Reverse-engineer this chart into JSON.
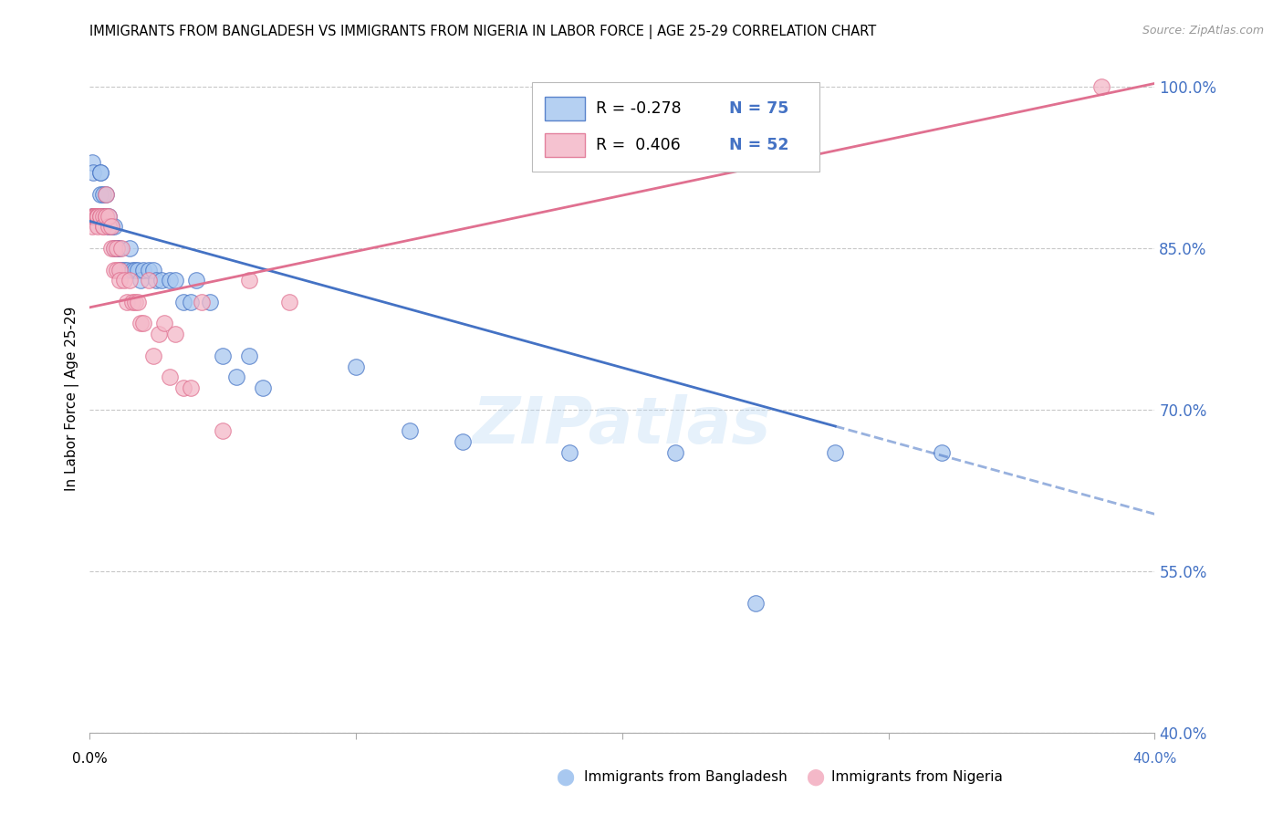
{
  "title": "IMMIGRANTS FROM BANGLADESH VS IMMIGRANTS FROM NIGERIA IN LABOR FORCE | AGE 25-29 CORRELATION CHART",
  "source": "Source: ZipAtlas.com",
  "ylabel": "In Labor Force | Age 25-29",
  "legend_r_bangladesh": "R = -0.278",
  "legend_n_bangladesh": "N = 75",
  "legend_r_nigeria": "R =  0.406",
  "legend_n_nigeria": "N = 52",
  "color_bangladesh": "#a8c8f0",
  "color_nigeria": "#f4b8c8",
  "color_bangladesh_line": "#4472c4",
  "color_nigeria_line": "#e07090",
  "color_axis_right": "#4472c4",
  "color_grid": "#c8c8c8",
  "watermark": "ZIPatlas",
  "xmin": 0.0,
  "xmax": 0.4,
  "ymin": 0.4,
  "ymax": 1.02,
  "ytick_vals": [
    1.0,
    0.85,
    0.7,
    0.55,
    0.4
  ],
  "ytick_labels": [
    "100.0%",
    "85.0%",
    "70.0%",
    "55.0%",
    "40.0%"
  ],
  "bangladesh_x": [
    0.0008,
    0.001,
    0.0012,
    0.0015,
    0.0015,
    0.002,
    0.002,
    0.002,
    0.002,
    0.0025,
    0.003,
    0.003,
    0.003,
    0.003,
    0.003,
    0.003,
    0.0035,
    0.004,
    0.004,
    0.004,
    0.0045,
    0.005,
    0.005,
    0.005,
    0.005,
    0.005,
    0.005,
    0.006,
    0.006,
    0.006,
    0.006,
    0.007,
    0.007,
    0.007,
    0.008,
    0.008,
    0.008,
    0.009,
    0.009,
    0.01,
    0.01,
    0.01,
    0.011,
    0.011,
    0.012,
    0.013,
    0.014,
    0.015,
    0.016,
    0.017,
    0.018,
    0.019,
    0.02,
    0.022,
    0.024,
    0.025,
    0.027,
    0.03,
    0.032,
    0.035,
    0.038,
    0.04,
    0.045,
    0.05,
    0.055,
    0.06,
    0.065,
    0.1,
    0.12,
    0.14,
    0.18,
    0.22,
    0.25,
    0.28,
    0.32
  ],
  "bangladesh_y": [
    0.88,
    0.93,
    0.92,
    0.88,
    0.88,
    0.88,
    0.88,
    0.88,
    0.88,
    0.88,
    0.88,
    0.88,
    0.88,
    0.88,
    0.88,
    0.88,
    0.88,
    0.9,
    0.92,
    0.92,
    0.88,
    0.9,
    0.88,
    0.88,
    0.88,
    0.88,
    0.88,
    0.9,
    0.88,
    0.88,
    0.88,
    0.87,
    0.88,
    0.87,
    0.87,
    0.87,
    0.87,
    0.87,
    0.85,
    0.85,
    0.85,
    0.85,
    0.85,
    0.83,
    0.83,
    0.83,
    0.83,
    0.85,
    0.83,
    0.83,
    0.83,
    0.82,
    0.83,
    0.83,
    0.83,
    0.82,
    0.82,
    0.82,
    0.82,
    0.8,
    0.8,
    0.82,
    0.8,
    0.75,
    0.73,
    0.75,
    0.72,
    0.74,
    0.68,
    0.67,
    0.66,
    0.66,
    0.52,
    0.66,
    0.66
  ],
  "nigeria_x": [
    0.0008,
    0.001,
    0.0012,
    0.0015,
    0.002,
    0.002,
    0.002,
    0.0025,
    0.003,
    0.003,
    0.003,
    0.003,
    0.004,
    0.004,
    0.005,
    0.005,
    0.005,
    0.006,
    0.006,
    0.006,
    0.007,
    0.007,
    0.008,
    0.008,
    0.009,
    0.009,
    0.01,
    0.01,
    0.011,
    0.011,
    0.012,
    0.013,
    0.014,
    0.015,
    0.016,
    0.017,
    0.018,
    0.019,
    0.02,
    0.022,
    0.024,
    0.026,
    0.028,
    0.03,
    0.032,
    0.035,
    0.038,
    0.042,
    0.05,
    0.06,
    0.075,
    0.38
  ],
  "nigeria_y": [
    0.88,
    0.87,
    0.88,
    0.88,
    0.88,
    0.88,
    0.88,
    0.88,
    0.88,
    0.88,
    0.88,
    0.87,
    0.88,
    0.88,
    0.88,
    0.87,
    0.87,
    0.9,
    0.88,
    0.88,
    0.87,
    0.88,
    0.85,
    0.87,
    0.85,
    0.83,
    0.85,
    0.83,
    0.83,
    0.82,
    0.85,
    0.82,
    0.8,
    0.82,
    0.8,
    0.8,
    0.8,
    0.78,
    0.78,
    0.82,
    0.75,
    0.77,
    0.78,
    0.73,
    0.77,
    0.72,
    0.72,
    0.8,
    0.68,
    0.82,
    0.8,
    1.0
  ],
  "regression_bangladesh": [
    -0.68,
    0.875
  ],
  "regression_nigeria": [
    0.52,
    0.795
  ]
}
